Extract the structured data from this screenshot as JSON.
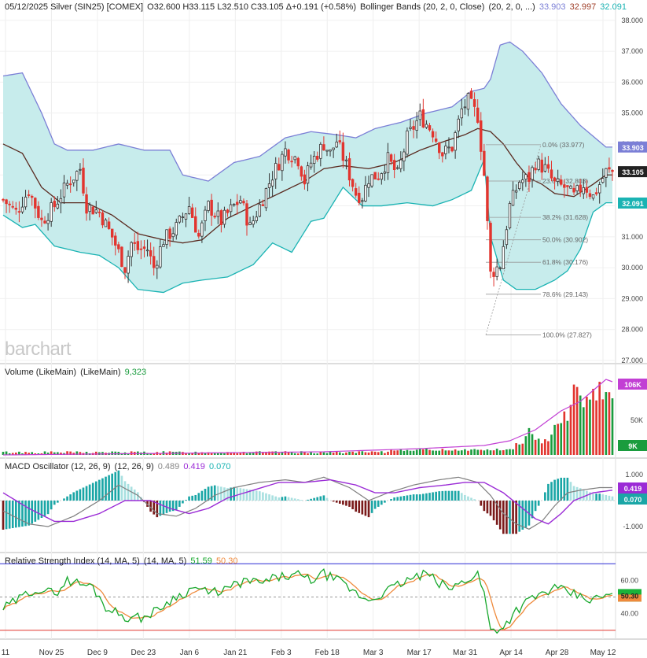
{
  "header": {
    "title": "05/12/2025 Silver (SIN25) [COMEX]",
    "ohlc": "O32.600 H33.115 L32.510 C33.105 Δ+0.191 (+0.58%)",
    "bb_label": "Bollinger Bands (20, 2, 0, Close)",
    "bb_params": "(20, 2, 0, ...)",
    "bb_upper": "33.903",
    "bb_mid": "32.997",
    "bb_lower": "32.091"
  },
  "watermark": "barchart",
  "colors": {
    "up": "#1a9c3e",
    "down": "#e2352f",
    "band_fill": "#c7ecec",
    "band_upper": "#7b7fd6",
    "band_lower": "#1ab3b3",
    "band_mid": "#5a2a20",
    "macd_line": "#7f7f7f",
    "signal_line": "#9b2bd6",
    "rsi": "#17a82c",
    "rsi_ma": "#ef8a3c",
    "volume_ma": "#c23fd4"
  },
  "volume": {
    "label": "Volume (LikeMain)",
    "params": "(LikeMain)",
    "value": "9,323",
    "badge_ma": "106K",
    "badge_vol": "9K"
  },
  "macd": {
    "label": "MACD Oscillator (12, 26, 9)",
    "params": "(12, 26, 9)",
    "v1": "0.489",
    "v2": "0.419",
    "v3": "0.070",
    "badge_a": "0.419",
    "badge_b": "0.070"
  },
  "rsi": {
    "label": "Relative Strength Index (14, MA, 5)",
    "params": "(14, MA, 5)",
    "v1": "51.59",
    "v2": "50.30",
    "badge": "50.30"
  },
  "chart_data": {
    "type": "candlestick",
    "x_labels": [
      "11",
      "Nov 25",
      "Dec 9",
      "Dec 23",
      "Jan 6",
      "Jan 21",
      "Feb 3",
      "Feb 18",
      "Mar 3",
      "Mar 17",
      "Mar 31",
      "Apr 14",
      "Apr 28",
      "May 12"
    ],
    "price_axis": {
      "ylim": [
        27,
        38.3
      ],
      "ticks": [
        "38.000",
        "37.000",
        "36.000",
        "35.000",
        "34.000",
        "33.000",
        "32.000",
        "31.000",
        "30.000",
        "29.000",
        "28.000",
        "27.000"
      ]
    },
    "price_badges": [
      {
        "value": "33.903",
        "color": "#7b7fd6"
      },
      {
        "value": "33.105",
        "color": "#222222"
      },
      {
        "value": "32.091",
        "color": "#1ab3b3"
      }
    ],
    "fib_levels": [
      {
        "label": "0.0% (33.977)",
        "value": 33.977
      },
      {
        "label": "23.6% (32.803)",
        "value": 32.803
      },
      {
        "label": "38.2% (31.628)",
        "value": 31.628
      },
      {
        "label": "50.0% (30.902)",
        "value": 30.902
      },
      {
        "label": "61.8% (30.176)",
        "value": 30.176
      },
      {
        "label": "78.6% (29.143)",
        "value": 29.143
      },
      {
        "label": "100.0% (27.827)",
        "value": 27.827
      }
    ],
    "price_anchors": [
      [
        0,
        32.2
      ],
      [
        4,
        31.8
      ],
      [
        8,
        32.5
      ],
      [
        12,
        31.5
      ],
      [
        16,
        32.0
      ],
      [
        20,
        32.7
      ],
      [
        24,
        33.2
      ],
      [
        26,
        32.0
      ],
      [
        30,
        31.8
      ],
      [
        34,
        31.0
      ],
      [
        38,
        30.0
      ],
      [
        40,
        30.8
      ],
      [
        42,
        30.6
      ],
      [
        45,
        30.6
      ],
      [
        47,
        30.0
      ],
      [
        50,
        30.9
      ],
      [
        54,
        31.3
      ],
      [
        58,
        32.0
      ],
      [
        61,
        31.0
      ],
      [
        64,
        32.0
      ],
      [
        68,
        31.5
      ],
      [
        72,
        32.0
      ],
      [
        74,
        32.2
      ],
      [
        77,
        31.3
      ],
      [
        80,
        32.0
      ],
      [
        84,
        33.0
      ],
      [
        88,
        33.8
      ],
      [
        92,
        33.5
      ],
      [
        94,
        32.8
      ],
      [
        96,
        33.4
      ],
      [
        100,
        34.0
      ],
      [
        102,
        33.7
      ],
      [
        104,
        34.1
      ],
      [
        107,
        33.3
      ],
      [
        110,
        32.4
      ],
      [
        112,
        32.3
      ],
      [
        114,
        32.9
      ],
      [
        117,
        33.0
      ],
      [
        120,
        33.5
      ],
      [
        123,
        33.0
      ],
      [
        126,
        34.2
      ],
      [
        130,
        34.9
      ],
      [
        134,
        34.4
      ],
      [
        137,
        33.7
      ],
      [
        140,
        33.9
      ],
      [
        143,
        35.1
      ],
      [
        145,
        35.4
      ],
      [
        148,
        34.9
      ],
      [
        150,
        33.0
      ],
      [
        152,
        29.8
      ],
      [
        155,
        30.1
      ],
      [
        158,
        32.0
      ],
      [
        161,
        32.8
      ],
      [
        164,
        32.9
      ],
      [
        166,
        33.4
      ],
      [
        169,
        33.2
      ],
      [
        172,
        32.7
      ],
      [
        175,
        32.6
      ],
      [
        178,
        32.3
      ],
      [
        181,
        32.7
      ],
      [
        184,
        32.3
      ],
      [
        188,
        33.1
      ]
    ],
    "bb_upper_anchors": [
      [
        0,
        36.2
      ],
      [
        6,
        36.3
      ],
      [
        12,
        35.0
      ],
      [
        16,
        34.0
      ],
      [
        20,
        33.8
      ],
      [
        28,
        33.8
      ],
      [
        36,
        34.0
      ],
      [
        44,
        33.8
      ],
      [
        52,
        33.8
      ],
      [
        56,
        33.0
      ],
      [
        64,
        32.8
      ],
      [
        72,
        33.4
      ],
      [
        80,
        33.6
      ],
      [
        88,
        34.2
      ],
      [
        96,
        34.4
      ],
      [
        104,
        34.3
      ],
      [
        110,
        34.2
      ],
      [
        116,
        34.5
      ],
      [
        124,
        34.7
      ],
      [
        132,
        35.0
      ],
      [
        140,
        35.2
      ],
      [
        146,
        35.7
      ],
      [
        150,
        35.8
      ],
      [
        152,
        36.1
      ],
      [
        155,
        37.2
      ],
      [
        158,
        37.3
      ],
      [
        162,
        37.0
      ],
      [
        168,
        36.3
      ],
      [
        174,
        35.3
      ],
      [
        180,
        34.6
      ],
      [
        188,
        33.9
      ]
    ],
    "bb_mid_anchors": [
      [
        0,
        34.0
      ],
      [
        6,
        33.7
      ],
      [
        12,
        32.6
      ],
      [
        18,
        32.1
      ],
      [
        26,
        32.1
      ],
      [
        34,
        31.7
      ],
      [
        42,
        31.1
      ],
      [
        50,
        30.9
      ],
      [
        56,
        30.8
      ],
      [
        62,
        30.9
      ],
      [
        70,
        31.6
      ],
      [
        78,
        32.0
      ],
      [
        86,
        32.4
      ],
      [
        94,
        32.8
      ],
      [
        100,
        33.2
      ],
      [
        106,
        33.3
      ],
      [
        114,
        33.2
      ],
      [
        122,
        33.4
      ],
      [
        130,
        33.8
      ],
      [
        138,
        34.1
      ],
      [
        144,
        34.3
      ],
      [
        148,
        34.5
      ],
      [
        152,
        34.4
      ],
      [
        156,
        34.0
      ],
      [
        160,
        33.4
      ],
      [
        164,
        32.9
      ],
      [
        168,
        32.7
      ],
      [
        172,
        32.4
      ],
      [
        178,
        32.3
      ],
      [
        184,
        32.7
      ],
      [
        188,
        33.0
      ]
    ],
    "bb_lower_anchors": [
      [
        0,
        31.7
      ],
      [
        6,
        31.3
      ],
      [
        10,
        31.4
      ],
      [
        16,
        30.7
      ],
      [
        24,
        30.5
      ],
      [
        30,
        30.4
      ],
      [
        36,
        30.0
      ],
      [
        42,
        29.3
      ],
      [
        50,
        29.2
      ],
      [
        56,
        29.5
      ],
      [
        62,
        29.6
      ],
      [
        70,
        29.7
      ],
      [
        78,
        30.1
      ],
      [
        84,
        30.8
      ],
      [
        90,
        30.5
      ],
      [
        96,
        31.5
      ],
      [
        100,
        31.6
      ],
      [
        106,
        32.6
      ],
      [
        112,
        32.0
      ],
      [
        118,
        32.0
      ],
      [
        126,
        32.1
      ],
      [
        134,
        32.0
      ],
      [
        140,
        32.2
      ],
      [
        146,
        32.5
      ],
      [
        150,
        33.5
      ],
      [
        152,
        31.0
      ],
      [
        156,
        29.6
      ],
      [
        160,
        29.3
      ],
      [
        166,
        29.3
      ],
      [
        172,
        29.6
      ],
      [
        176,
        29.9
      ],
      [
        180,
        30.6
      ],
      [
        184,
        31.8
      ],
      [
        188,
        32.1
      ]
    ],
    "volume_axis": {
      "ticks": [
        "106K",
        "50K",
        "9K"
      ]
    },
    "volume_recent": [
      [
        160,
        8
      ],
      [
        162,
        6
      ],
      [
        164,
        14
      ],
      [
        166,
        8
      ],
      [
        168,
        8
      ],
      [
        170,
        10
      ],
      [
        172,
        18
      ],
      [
        174,
        22
      ],
      [
        176,
        24
      ],
      [
        178,
        36
      ],
      [
        180,
        36
      ],
      [
        182,
        32
      ],
      [
        184,
        36
      ],
      [
        186,
        40
      ],
      [
        188,
        38
      ],
      [
        190,
        32
      ],
      [
        192,
        20
      ],
      [
        194,
        9
      ]
    ],
    "macd_axis": {
      "ticks": [
        "1.000",
        "-1.000"
      ]
    },
    "macd_anchors": [
      [
        0,
        -0.4
      ],
      [
        8,
        -0.9
      ],
      [
        14,
        -1.0
      ],
      [
        22,
        -0.6
      ],
      [
        30,
        0.0
      ],
      [
        36,
        0.6
      ],
      [
        42,
        0.2
      ],
      [
        48,
        -0.5
      ],
      [
        54,
        -0.6
      ],
      [
        60,
        -0.3
      ],
      [
        66,
        0.2
      ],
      [
        72,
        0.5
      ],
      [
        80,
        0.7
      ],
      [
        88,
        0.8
      ],
      [
        94,
        0.7
      ],
      [
        100,
        0.9
      ],
      [
        108,
        0.5
      ],
      [
        114,
        0.0
      ],
      [
        120,
        0.3
      ],
      [
        128,
        0.6
      ],
      [
        136,
        0.8
      ],
      [
        142,
        0.9
      ],
      [
        148,
        0.7
      ],
      [
        152,
        0.2
      ],
      [
        156,
        -0.5
      ],
      [
        160,
        -0.9
      ],
      [
        164,
        -1.1
      ],
      [
        168,
        -0.8
      ],
      [
        172,
        -0.2
      ],
      [
        176,
        0.3
      ],
      [
        180,
        0.4
      ],
      [
        186,
        0.5
      ],
      [
        190,
        0.5
      ]
    ],
    "signal_anchors": [
      [
        0,
        0.3
      ],
      [
        8,
        -0.3
      ],
      [
        16,
        -0.8
      ],
      [
        22,
        -0.8
      ],
      [
        30,
        -0.5
      ],
      [
        38,
        0.0
      ],
      [
        46,
        0.0
      ],
      [
        52,
        -0.3
      ],
      [
        58,
        -0.5
      ],
      [
        64,
        -0.3
      ],
      [
        70,
        0.1
      ],
      [
        78,
        0.4
      ],
      [
        86,
        0.7
      ],
      [
        94,
        0.7
      ],
      [
        102,
        0.8
      ],
      [
        110,
        0.6
      ],
      [
        116,
        0.3
      ],
      [
        122,
        0.3
      ],
      [
        130,
        0.5
      ],
      [
        138,
        0.6
      ],
      [
        144,
        0.7
      ],
      [
        150,
        0.7
      ],
      [
        156,
        0.3
      ],
      [
        162,
        -0.3
      ],
      [
        166,
        -0.7
      ],
      [
        170,
        -0.9
      ],
      [
        174,
        -0.5
      ],
      [
        178,
        0.0
      ],
      [
        184,
        0.3
      ],
      [
        190,
        0.4
      ]
    ],
    "rsi_axis": {
      "ticks": [
        "60.00",
        "40.00"
      ],
      "upper_line": 70,
      "lower_line": 30
    },
    "rsi_anchors": [
      [
        0,
        43
      ],
      [
        6,
        50
      ],
      [
        10,
        55
      ],
      [
        16,
        52
      ],
      [
        20,
        60
      ],
      [
        24,
        58
      ],
      [
        28,
        56
      ],
      [
        32,
        44
      ],
      [
        36,
        40
      ],
      [
        40,
        37
      ],
      [
        44,
        38
      ],
      [
        48,
        42
      ],
      [
        52,
        48
      ],
      [
        56,
        52
      ],
      [
        60,
        56
      ],
      [
        64,
        52
      ],
      [
        70,
        55
      ],
      [
        76,
        60
      ],
      [
        80,
        58
      ],
      [
        86,
        62
      ],
      [
        92,
        63
      ],
      [
        96,
        60
      ],
      [
        100,
        64
      ],
      [
        106,
        58
      ],
      [
        110,
        52
      ],
      [
        114,
        48
      ],
      [
        120,
        54
      ],
      [
        126,
        60
      ],
      [
        132,
        64
      ],
      [
        136,
        58
      ],
      [
        140,
        55
      ],
      [
        144,
        60
      ],
      [
        148,
        64
      ],
      [
        150,
        52
      ],
      [
        152,
        30
      ],
      [
        156,
        32
      ],
      [
        160,
        42
      ],
      [
        164,
        48
      ],
      [
        168,
        52
      ],
      [
        172,
        55
      ],
      [
        176,
        53
      ],
      [
        180,
        50
      ],
      [
        184,
        48
      ],
      [
        188,
        51
      ]
    ]
  }
}
